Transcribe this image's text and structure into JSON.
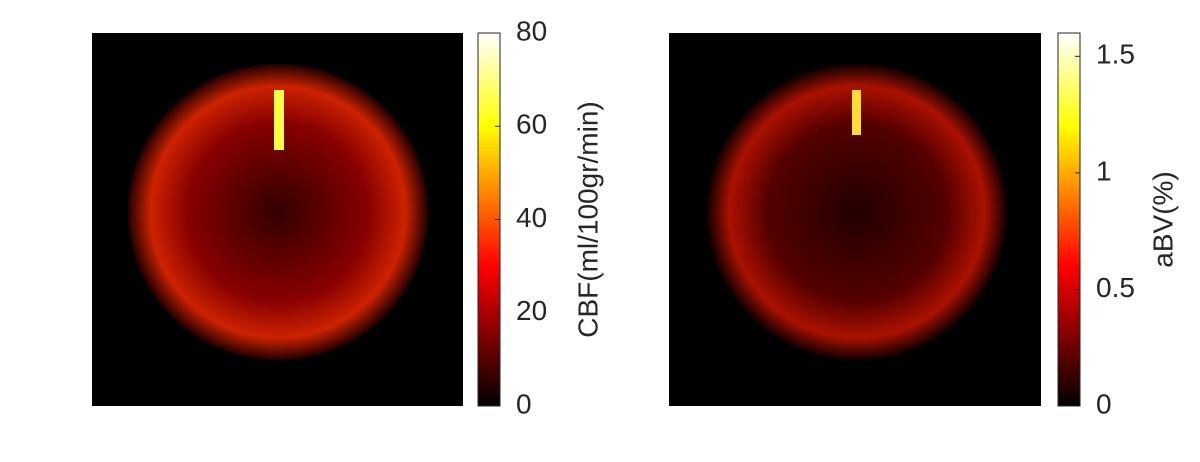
{
  "chart_data": [
    {
      "type": "heatmap",
      "colorbar_label": "CBF(ml/100gr/min)",
      "clim": [
        0,
        80
      ],
      "cticks": [
        0,
        20,
        40,
        60,
        80
      ]
    },
    {
      "type": "heatmap",
      "colorbar_label": "aBV(%)",
      "clim": [
        0,
        1.6
      ],
      "cticks": [
        0,
        0.5,
        1,
        1.5
      ]
    }
  ]
}
